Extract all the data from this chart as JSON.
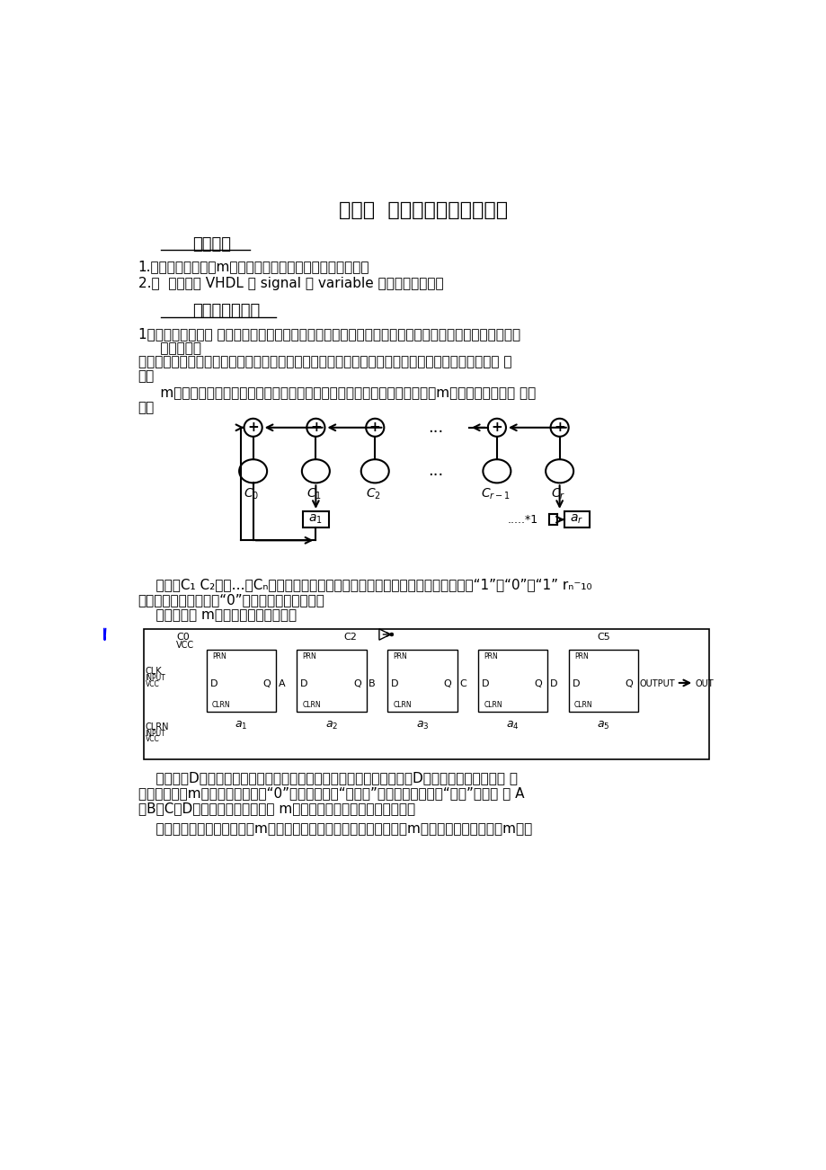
{
  "title": "实验七  伪随机序列发生器设计",
  "section1_title": "实验目的",
  "s1_item1": "1.掌握伪随机序列（m序列）发生器的基本原理和设计方法；",
  "s1_item2": "2.．  深入理解 VHDL 中 signal 和 variable 的不同及其应用；",
  "section2_title": "设计描述及方法",
  "s2_item1": "1．伪随机序列概述 在扩展频谱通信系统中，伪随机序列起着十分关键的作用。在直接序列扩频系统得发",
  "s2_item2": "     射端，伪随",
  "s2_item3": "机序列将信息序列的频谱扩展，在接收端，伪随机序列将扩频信号恢复为窄带信号，进而完成信息的 接",
  "s2_item4": "收。",
  "s2_item5": "     m序列又称为最长线形反馈移位寄存器序列，该序列具有很好的相关性能。m序列发生器的基本 结构",
  "s2_item6": "为：",
  "t1_line1": "    其中（C₁ C₂】，…，Cₙ）为反馈系数，也是特征多项式系数。这些系数的取値为“1”或“0”，“1” rₙ⁻₁₀",
  "t1_line2": "表示该反馈支路连通，“0”表示该反馈支路断开。",
  "t1_line3": "    下图为实际 m序列发生器的电路图：",
  "t2_line1": "    图中利用D触发器级联的方式完成移位寄存器的功能。在系统清零后，D触发器输出状态均为低 电",
  "t2_line2": "平，为了避免m序列发生器输出全“0”信号，图中在“模二加”运算后添加了一个“非门”。从图 中 A",
  "t2_line3": "、B、C、D四个节点均可得到同一 m序列，只是序列的初始相位不同。",
  "t2_line4": "    特征多项式系数决定了一个m序列的特征多项式，同时也决定了一个m序列。下表给出了部分m序列",
  "bg_color": "#ffffff",
  "text_color": "#000000"
}
